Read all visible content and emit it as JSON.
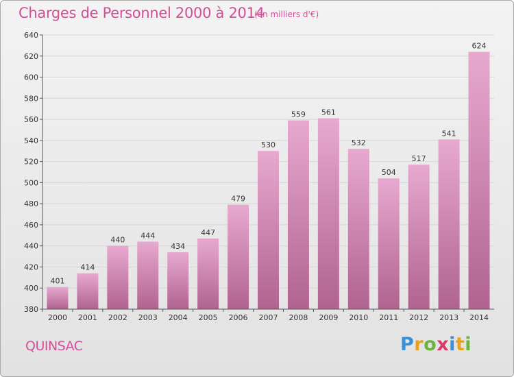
{
  "header": {
    "title": "Charges de Personnel 2000 à 2014",
    "subtitle": "(en milliers d'€)"
  },
  "footer": {
    "commune": "QUINSAC",
    "logo_letters": [
      "P",
      "r",
      "o",
      "x",
      "i",
      "t",
      "i"
    ],
    "logo_colors": [
      "#3a8fd8",
      "#e8a21a",
      "#6cb33f",
      "#d63a6a",
      "#3a8fd8",
      "#e8a21a",
      "#6cb33f"
    ]
  },
  "colors": {
    "bar_top": "#e7a9cf",
    "bar_bottom": "#b0638f",
    "title": "#d34f98",
    "grid": "#d6d6d6"
  },
  "chart_data": {
    "type": "bar",
    "title": "Charges de Personnel 2000 à 2014",
    "subtitle": "(en milliers d'€)",
    "xlabel": "",
    "ylabel": "",
    "categories": [
      "2000",
      "2001",
      "2002",
      "2003",
      "2004",
      "2005",
      "2006",
      "2007",
      "2008",
      "2009",
      "2010",
      "2011",
      "2012",
      "2013",
      "2014"
    ],
    "values": [
      401,
      414,
      440,
      444,
      434,
      447,
      479,
      530,
      559,
      561,
      532,
      504,
      517,
      541,
      624
    ],
    "ylim": [
      380,
      640
    ],
    "yticks": [
      380,
      400,
      420,
      440,
      460,
      480,
      500,
      520,
      540,
      560,
      580,
      600,
      620,
      640
    ],
    "grid": true,
    "legend": "none"
  }
}
